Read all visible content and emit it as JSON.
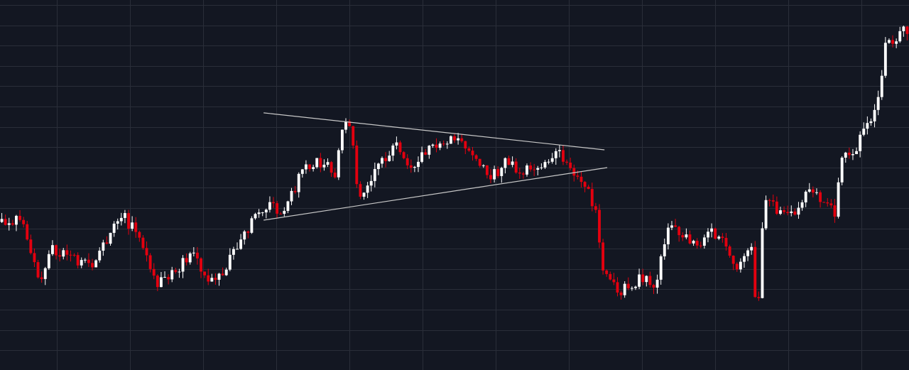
{
  "chart_data": {
    "type": "candlestick",
    "title": "",
    "xlabel": "",
    "ylabel": "",
    "grid": true,
    "legend": "none",
    "x_range": [
      0,
      100
    ],
    "y_range": [
      0,
      100
    ],
    "colors": {
      "background": "#131722",
      "grid": "#2a2e39",
      "up": "#ffffff",
      "down": "#e3000f",
      "trendline": "#c8c8c8"
    },
    "anchors": [
      [
        0,
        40.0
      ],
      [
        2.5,
        40.2
      ],
      [
        4.5,
        23.4
      ],
      [
        5.5,
        33.7
      ],
      [
        7.5,
        30.0
      ],
      [
        10.5,
        28.8
      ],
      [
        13.2,
        43.0
      ],
      [
        15.0,
        36.7
      ],
      [
        17.5,
        23.0
      ],
      [
        19.0,
        26.3
      ],
      [
        21.0,
        31.5
      ],
      [
        22.5,
        25.6
      ],
      [
        24.5,
        25.1
      ],
      [
        26.5,
        36.3
      ],
      [
        28.5,
        42.2
      ],
      [
        29.0,
        44.0
      ],
      [
        31.5,
        43.6
      ],
      [
        33.5,
        55.1
      ],
      [
        35.5,
        56.1
      ],
      [
        36.0,
        55.0
      ],
      [
        37.0,
        52.0
      ],
      [
        37.5,
        66.0
      ],
      [
        38.5,
        66.5
      ],
      [
        39.5,
        46.1
      ],
      [
        42.0,
        56.5
      ],
      [
        43.5,
        60.8
      ],
      [
        45.0,
        54.0
      ],
      [
        47.5,
        60.0
      ],
      [
        49.0,
        61.4
      ],
      [
        50.5,
        63.5
      ],
      [
        52.0,
        59.0
      ],
      [
        54.0,
        51.7
      ],
      [
        55.5,
        56.0
      ],
      [
        57.5,
        54.0
      ],
      [
        59.5,
        54.2
      ],
      [
        61.5,
        58.4
      ],
      [
        62.5,
        54.0
      ],
      [
        64.5,
        50.7
      ],
      [
        65.5,
        43.0
      ],
      [
        66.5,
        25.1
      ],
      [
        68.0,
        21.4
      ],
      [
        69.5,
        22.6
      ],
      [
        70.5,
        25.8
      ],
      [
        72.0,
        22.1
      ],
      [
        73.5,
        39.6
      ],
      [
        75.5,
        36.7
      ],
      [
        76.5,
        33.2
      ],
      [
        78.0,
        37.5
      ],
      [
        79.5,
        36.0
      ],
      [
        81.0,
        28.0
      ],
      [
        82.0,
        32.5
      ],
      [
        82.8,
        34.4
      ],
      [
        83.3,
        10.0
      ],
      [
        84.0,
        46.2
      ],
      [
        86.0,
        42.1
      ],
      [
        88.0,
        43.0
      ],
      [
        89.0,
        48.8
      ],
      [
        91.0,
        45.5
      ],
      [
        92.0,
        42.0
      ],
      [
        92.5,
        58.5
      ],
      [
        93.5,
        57.0
      ],
      [
        95.0,
        64.0
      ],
      [
        95.5,
        66.5
      ],
      [
        96.5,
        72.3
      ],
      [
        97.5,
        89.1
      ],
      [
        98.5,
        86.7
      ],
      [
        99.5,
        93.8
      ],
      [
        100,
        87.5
      ]
    ],
    "trendlines": [
      {
        "name": "upper",
        "from": [
          29.0,
          69.5
        ],
        "to": [
          66.5,
          59.5
        ]
      },
      {
        "name": "lower",
        "from": [
          29.0,
          40.5
        ],
        "to": [
          66.8,
          54.7
        ]
      }
    ]
  }
}
